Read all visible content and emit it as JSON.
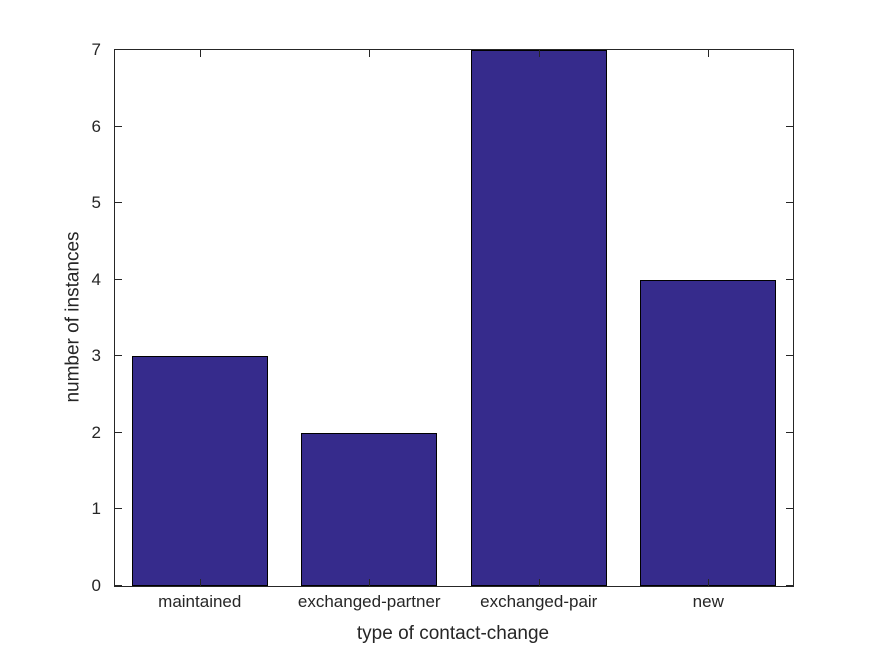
{
  "chart_data": {
    "type": "bar",
    "title": "",
    "categories": [
      "maintained",
      "exchanged-partner",
      "exchanged-pair",
      "new"
    ],
    "values": [
      3,
      2,
      7,
      4
    ],
    "xlabel": "type of contact-change",
    "ylabel": "number of instances",
    "ylim": [
      0,
      7
    ],
    "yticks": [
      0,
      1,
      2,
      3,
      4,
      5,
      6,
      7
    ],
    "grid": false,
    "legend": "none",
    "bar_width_fraction": 0.8,
    "colors": {
      "bar_fill": "#362b8c",
      "bar_edge": "#000000",
      "axis": "#262626",
      "text": "#262626",
      "background": "#ffffff"
    }
  }
}
